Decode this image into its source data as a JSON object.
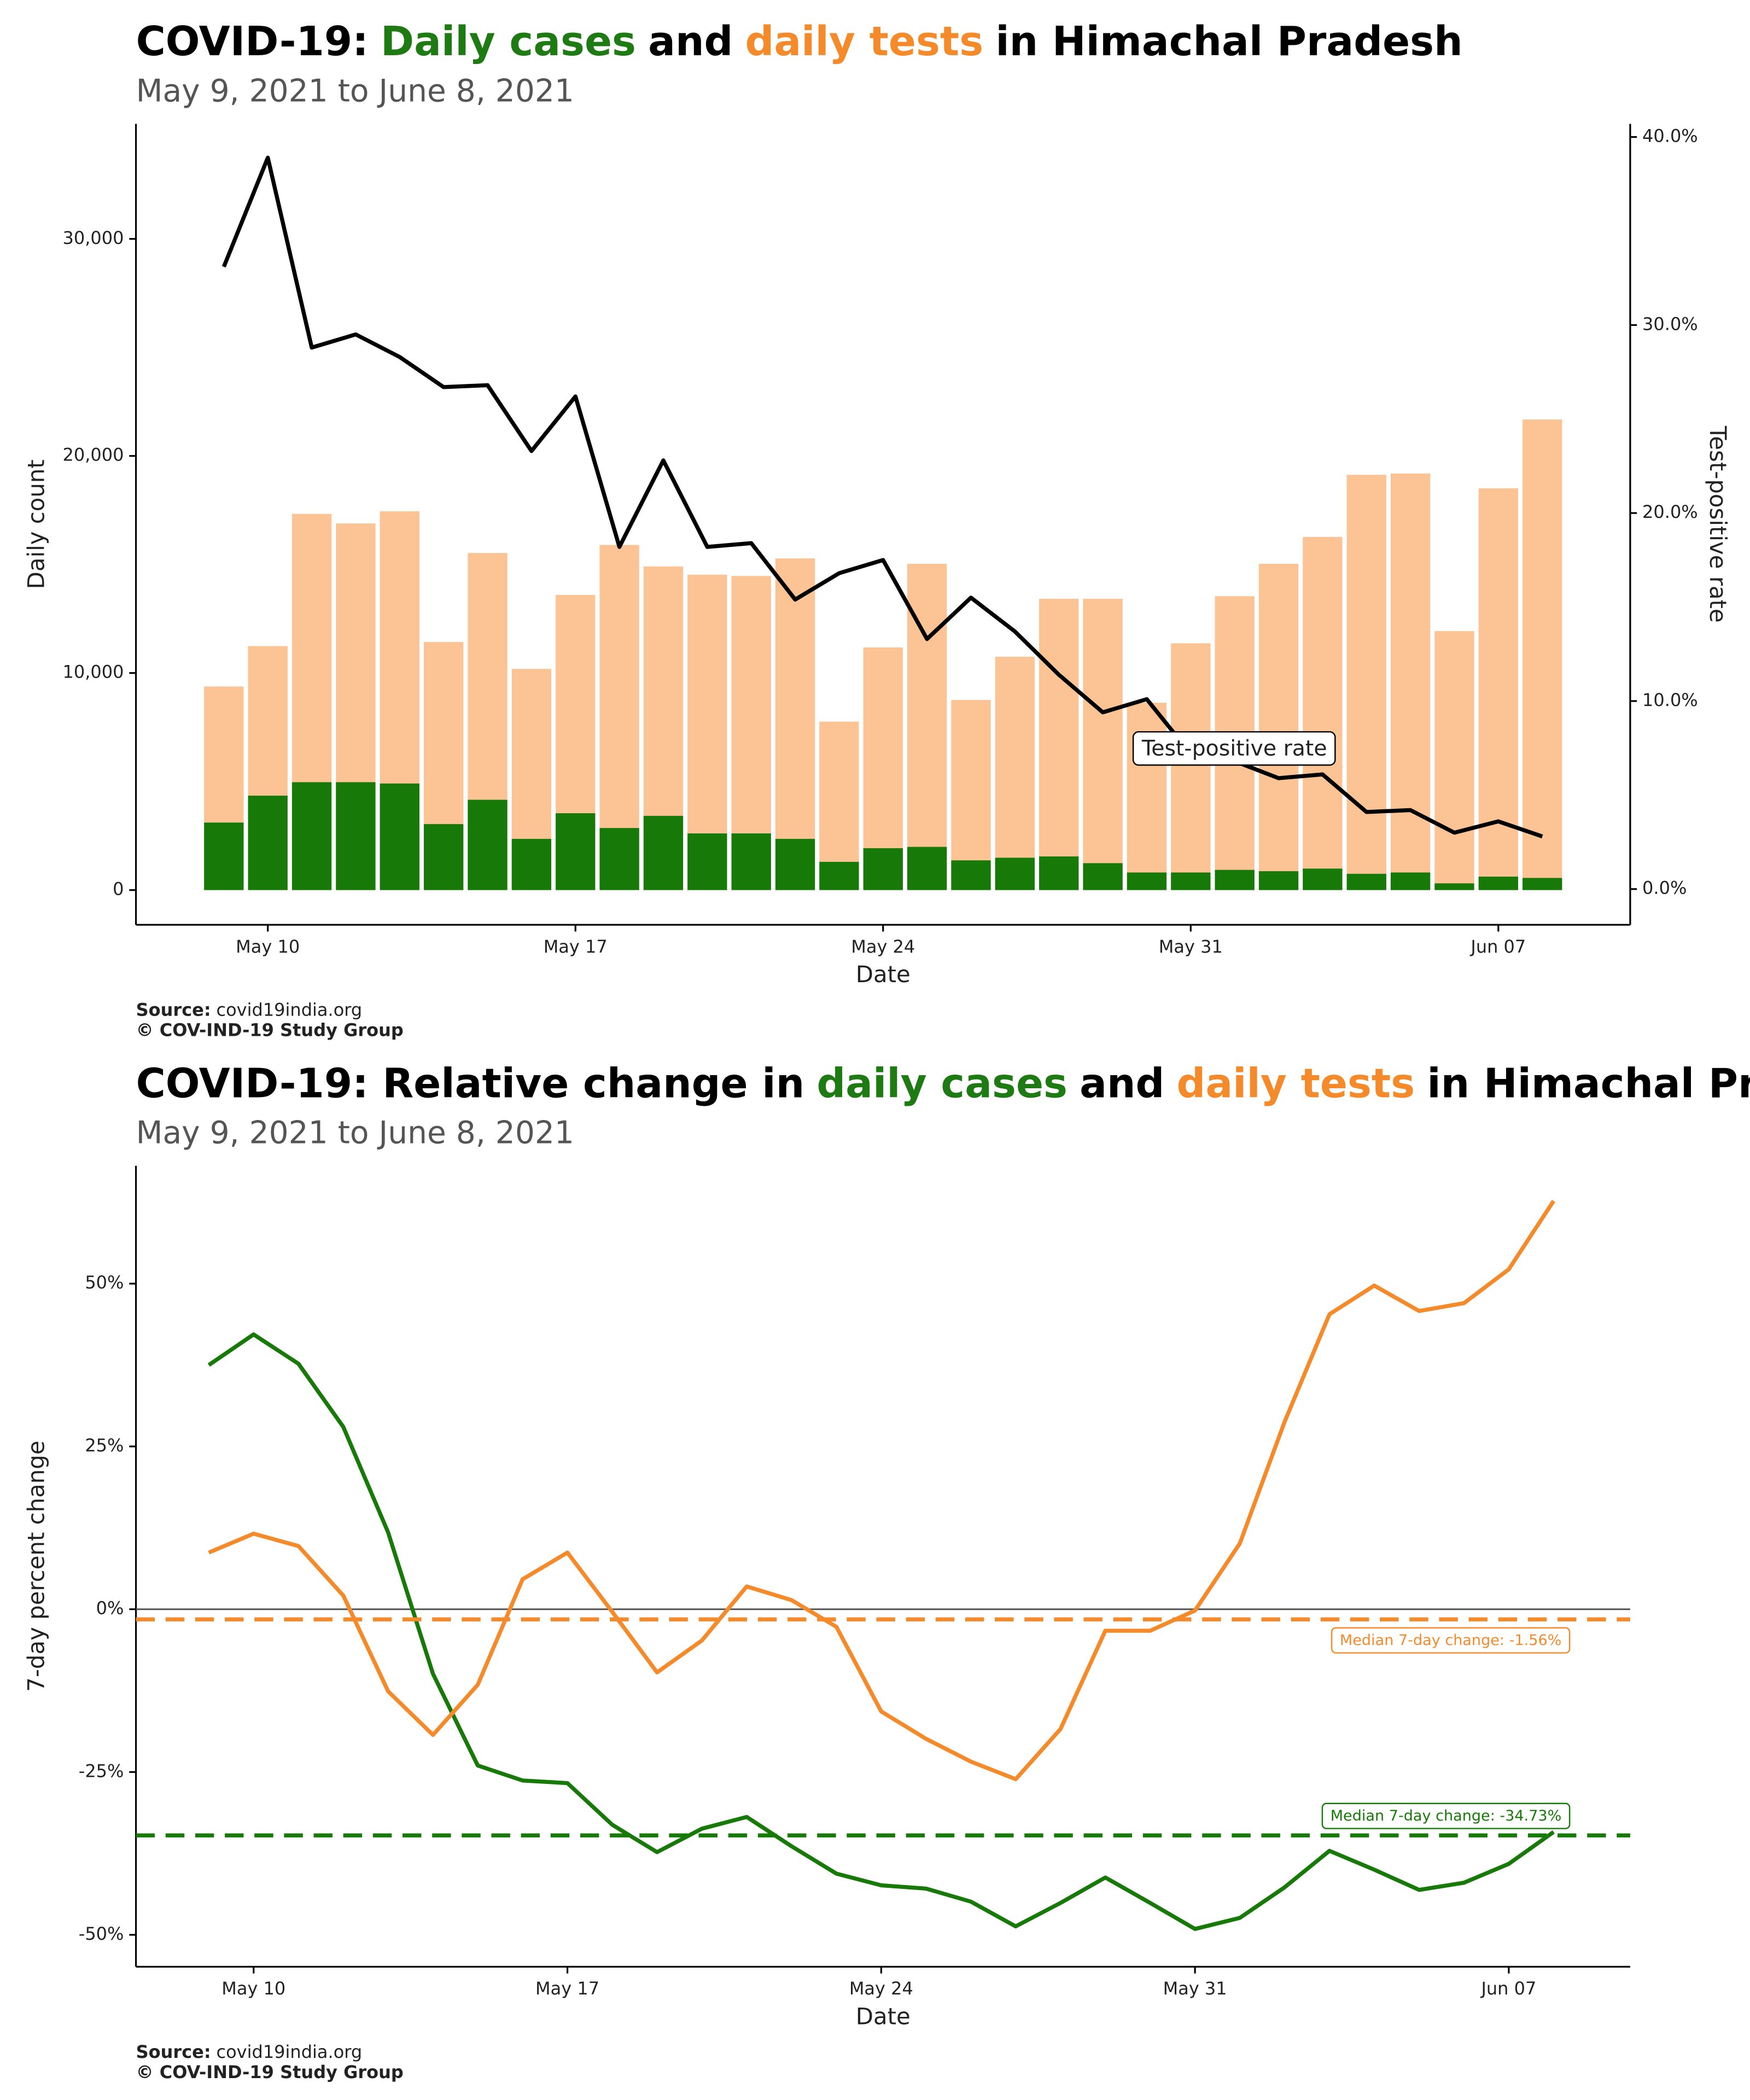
{
  "chart_data": [
    {
      "type": "bar",
      "title": [
        {
          "text": "COVID-19:",
          "color": "#000000"
        },
        {
          "text": "Daily cases",
          "color": "#1e7a12"
        },
        {
          "text": "and",
          "color": "#000000"
        },
        {
          "text": "daily tests",
          "color": "#f58a2b"
        },
        {
          "text": "in Himachal Pradesh",
          "color": "#000000"
        }
      ],
      "subtitle": "May  9, 2021 to June  8, 2021",
      "x_label": "Date",
      "y_label": "Daily count",
      "y2_label": "Test-positive rate",
      "annotation": "Test-positive rate",
      "source_label": "Source:",
      "source": "covid19india.org",
      "copyright": "© COV-IND-19 Study Group",
      "x": [
        "2021-05-09",
        "2021-05-10",
        "2021-05-11",
        "2021-05-12",
        "2021-05-13",
        "2021-05-14",
        "2021-05-15",
        "2021-05-16",
        "2021-05-17",
        "2021-05-18",
        "2021-05-19",
        "2021-05-20",
        "2021-05-21",
        "2021-05-22",
        "2021-05-23",
        "2021-05-24",
        "2021-05-25",
        "2021-05-26",
        "2021-05-27",
        "2021-05-28",
        "2021-05-29",
        "2021-05-30",
        "2021-05-31",
        "2021-06-01",
        "2021-06-02",
        "2021-06-03",
        "2021-06-04",
        "2021-06-05",
        "2021-06-06",
        "2021-06-07",
        "2021-06-08"
      ],
      "series": [
        {
          "type": "bar",
          "color": "#fcc394",
          "values": [
            9380,
            11240,
            17330,
            16890,
            17450,
            11430,
            15530,
            10190,
            13600,
            15900,
            14910,
            14530,
            14470,
            15280,
            7760,
            11180,
            15030,
            8760,
            10750,
            13420,
            13420,
            8630,
            11370,
            13540,
            15030,
            16270,
            19130,
            19190,
            11930,
            18510,
            21680
          ]
        },
        {
          "type": "bar",
          "color": "#177a08",
          "values": [
            3110,
            4350,
            4970,
            4970,
            4910,
            3040,
            4160,
            2360,
            3540,
            2860,
            3420,
            2610,
            2610,
            2360,
            1300,
            1930,
            1990,
            1370,
            1490,
            1550,
            1240,
            810,
            810,
            930,
            870,
            990,
            750,
            810,
            310,
            620,
            560
          ]
        },
        {
          "type": "line",
          "axis": "y2",
          "color": "#000000",
          "values": [
            33.1,
            38.9,
            28.8,
            29.5,
            28.3,
            26.7,
            26.8,
            23.3,
            26.2,
            18.2,
            22.8,
            18.2,
            18.4,
            15.4,
            16.8,
            17.5,
            13.3,
            15.5,
            13.7,
            11.4,
            9.4,
            10.1,
            7.2,
            6.8,
            5.9,
            6.1,
            4.1,
            4.2,
            3.0,
            3.6,
            2.8
          ]
        }
      ],
      "xlim": [
        "2021-05-07",
        "2021-06-10"
      ],
      "xticks": [
        {
          "value": "2021-05-10",
          "label": "May 10"
        },
        {
          "value": "2021-05-17",
          "label": "May 17"
        },
        {
          "value": "2021-05-24",
          "label": "May 24"
        },
        {
          "value": "2021-05-31",
          "label": "May 31"
        },
        {
          "value": "2021-06-07",
          "label": "Jun 07"
        }
      ],
      "ylim": [
        -1600,
        35300
      ],
      "yticks": [
        {
          "value": 0,
          "label": "0"
        },
        {
          "value": 10000,
          "label": "10,000"
        },
        {
          "value": 20000,
          "label": "20,000"
        },
        {
          "value": 30000,
          "label": "30,000"
        }
      ],
      "y2lim": [
        -1.9,
        40.7
      ],
      "y2ticks": [
        {
          "value": 0,
          "label": "0.0%"
        },
        {
          "value": 10,
          "label": "10.0%"
        },
        {
          "value": 20,
          "label": "20.0%"
        },
        {
          "value": 30,
          "label": "30.0%"
        },
        {
          "value": 40,
          "label": "40.0%"
        }
      ]
    },
    {
      "type": "line",
      "title": [
        {
          "text": "COVID-19: Relative change in",
          "color": "#000000"
        },
        {
          "text": "daily cases",
          "color": "#1e7a12"
        },
        {
          "text": "and",
          "color": "#000000"
        },
        {
          "text": "daily tests",
          "color": "#f58a2b"
        },
        {
          "text": "in Himachal Pradesh",
          "color": "#000000"
        }
      ],
      "subtitle": "May  9, 2021 to June  8, 2021",
      "x_label": "Date",
      "y_label": "7-day percent change",
      "source_label": "Source:",
      "source": "covid19india.org",
      "copyright": "© COV-IND-19 Study Group",
      "zero_line": true,
      "x": [
        "2021-05-09",
        "2021-05-10",
        "2021-05-11",
        "2021-05-12",
        "2021-05-13",
        "2021-05-14",
        "2021-05-15",
        "2021-05-16",
        "2021-05-17",
        "2021-05-18",
        "2021-05-19",
        "2021-05-20",
        "2021-05-21",
        "2021-05-22",
        "2021-05-23",
        "2021-05-24",
        "2021-05-25",
        "2021-05-26",
        "2021-05-27",
        "2021-05-28",
        "2021-05-29",
        "2021-05-30",
        "2021-05-31",
        "2021-06-01",
        "2021-06-02",
        "2021-06-03",
        "2021-06-04",
        "2021-06-05",
        "2021-06-06",
        "2021-06-07",
        "2021-06-08"
      ],
      "series": [
        {
          "type": "line",
          "color": "#177a08",
          "values": [
            37.5,
            42.2,
            37.7,
            28.0,
            11.8,
            -9.9,
            -24.0,
            -26.3,
            -26.7,
            -33.1,
            -37.3,
            -33.7,
            -31.9,
            -36.4,
            -40.6,
            -42.4,
            -42.9,
            -44.9,
            -48.7,
            -45.1,
            -41.2,
            -45.1,
            -49.1,
            -47.4,
            -42.7,
            -37.1,
            -40.0,
            -43.1,
            -42.0,
            -39.1,
            -34.2
          ]
        },
        {
          "type": "line",
          "color": "#f58a2b",
          "values": [
            8.7,
            11.6,
            9.7,
            2.1,
            -12.6,
            -19.3,
            -11.6,
            4.6,
            8.7,
            -0.4,
            -9.7,
            -4.8,
            3.5,
            1.4,
            -2.7,
            -15.7,
            -19.9,
            -23.4,
            -26.1,
            -18.4,
            -3.3,
            -3.3,
            -0.2,
            10.1,
            28.8,
            45.3,
            49.7,
            45.8,
            47.0,
            52.2,
            62.7
          ]
        }
      ],
      "reference_lines": [
        {
          "value": -1.56,
          "label": "Median 7-day change: -1.56%",
          "color": "#f58a2b"
        },
        {
          "value": -34.73,
          "label": "Median 7-day change: -34.73%",
          "color": "#177a08"
        }
      ],
      "xlim": [
        "2021-05-07T09:00Z",
        "2021-06-09T17:00Z"
      ],
      "xticks": [
        {
          "value": "2021-05-10",
          "label": "May 10"
        },
        {
          "value": "2021-05-17",
          "label": "May 17"
        },
        {
          "value": "2021-05-24",
          "label": "May 24"
        },
        {
          "value": "2021-05-31",
          "label": "May 31"
        },
        {
          "value": "2021-06-07",
          "label": "Jun 07"
        }
      ],
      "ylim": [
        -54.9,
        68.1
      ],
      "yticks": [
        {
          "value": -50,
          "label": "-50%"
        },
        {
          "value": -25,
          "label": "-25%"
        },
        {
          "value": 0,
          "label": "0%"
        },
        {
          "value": 25,
          "label": "25%"
        },
        {
          "value": 50,
          "label": "50%"
        }
      ]
    }
  ]
}
